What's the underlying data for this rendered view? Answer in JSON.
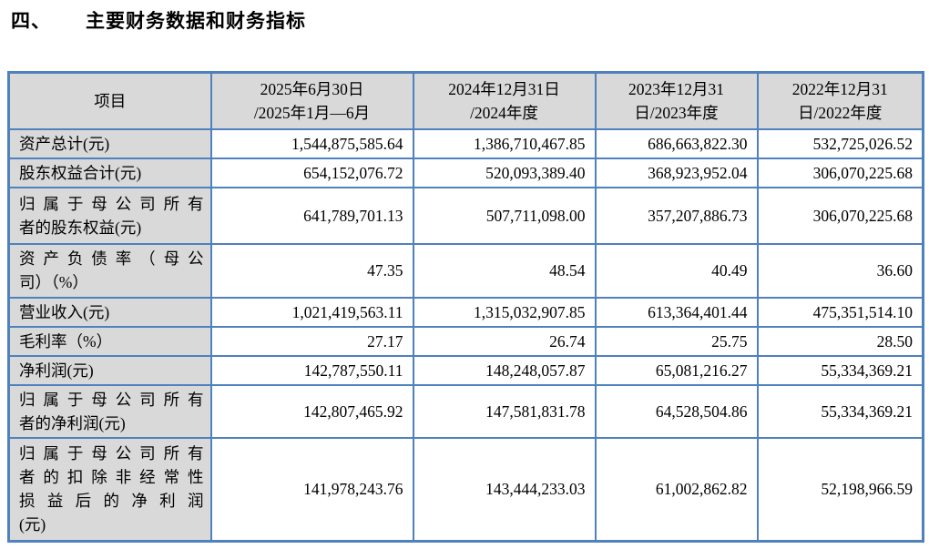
{
  "page": {
    "title_number": "四、",
    "title_text": "主要财务数据和财务指标"
  },
  "colors": {
    "table_border": "#4F81BD",
    "header_bg": "#D9D9D9",
    "text": "#000000",
    "page_bg": "#ffffff"
  },
  "table": {
    "header": {
      "item": "项目",
      "col_2025": "2025年6月30日\n/2025年1月—6月",
      "col_2024": "2024年12月31日\n/2024年度",
      "col_2023": "2023年12月31\n日/2023年度",
      "col_2022": "2022年12月31\n日/2022年度"
    },
    "rows": [
      {
        "label": "资产总计(元)",
        "label_lines": [
          "资产总计(元)"
        ],
        "values": [
          "1,544,875,585.64",
          "1,386,710,467.85",
          "686,663,822.30",
          "532,725,026.52"
        ]
      },
      {
        "label": "股东权益合计(元)",
        "label_lines": [
          "股东权益合计(元)"
        ],
        "values": [
          "654,152,076.72",
          "520,093,389.40",
          "368,923,952.04",
          "306,070,225.68"
        ]
      },
      {
        "label": "归属于母公司所有者的股东权益(元)",
        "label_lines": [
          "归属于母公司所有",
          "者的股东权益(元)"
        ],
        "values": [
          "641,789,701.13",
          "507,711,098.00",
          "357,207,886.73",
          "306,070,225.68"
        ]
      },
      {
        "label": "资产负债率（母公司）（%）",
        "label_lines": [
          "资产负债率（母公",
          "司）（%）"
        ],
        "values": [
          "47.35",
          "48.54",
          "40.49",
          "36.60"
        ]
      },
      {
        "label": "营业收入(元)",
        "label_lines": [
          "营业收入(元)"
        ],
        "values": [
          "1,021,419,563.11",
          "1,315,032,907.85",
          "613,364,401.44",
          "475,351,514.10"
        ]
      },
      {
        "label": "毛利率（%）",
        "label_lines": [
          "毛利率（%）"
        ],
        "values": [
          "27.17",
          "26.74",
          "25.75",
          "28.50"
        ]
      },
      {
        "label": "净利润(元)",
        "label_lines": [
          "净利润(元)"
        ],
        "values": [
          "142,787,550.11",
          "148,248,057.87",
          "65,081,216.27",
          "55,334,369.21"
        ]
      },
      {
        "label": "归属于母公司所有者的净利润(元)",
        "label_lines": [
          "归属于母公司所有",
          "者的净利润(元)"
        ],
        "values": [
          "142,807,465.92",
          "147,581,831.78",
          "64,528,504.86",
          "55,334,369.21"
        ]
      },
      {
        "label": "归属于母公司所有者的扣除非经常性损益后的净利润(元)",
        "label_lines": [
          "归属于母公司所有",
          "者的扣除非经常性",
          "损益后的净利润",
          "(元)"
        ],
        "values": [
          "141,978,243.76",
          "143,444,233.03",
          "61,002,862.82",
          "52,198,966.59"
        ]
      }
    ]
  }
}
